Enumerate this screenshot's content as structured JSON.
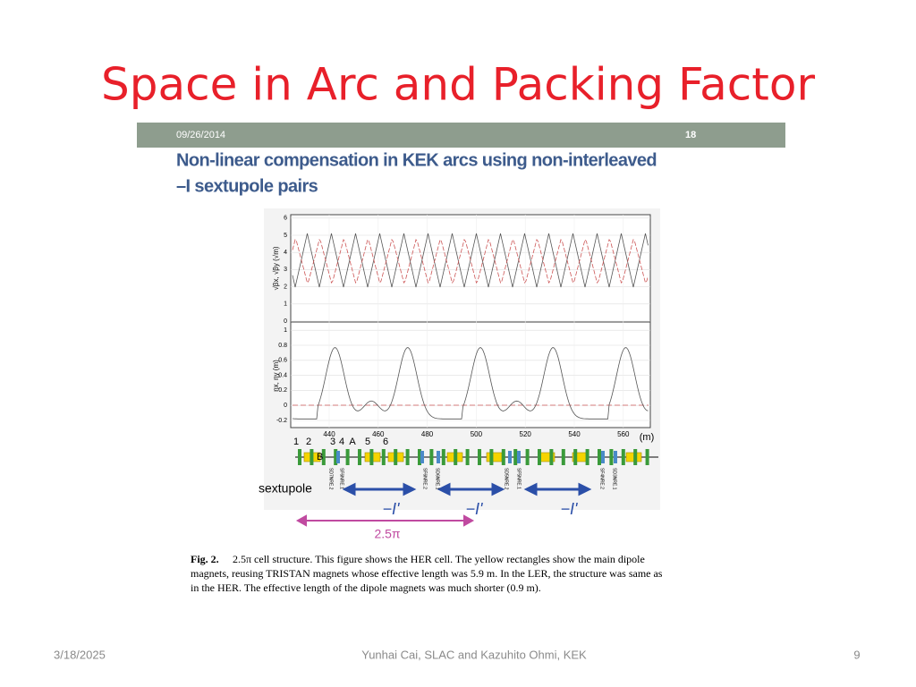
{
  "slide": {
    "title": "Space in Arc and Packing Factor"
  },
  "figure": {
    "header_date": "09/26/2014",
    "header_page": "18",
    "heading": [
      "Non-linear compensation in KEK arcs using non-interleaved",
      "–I sextupole pairs"
    ],
    "plot_top": {
      "ylabel": "√βx, √βy (√m)",
      "yticks": [
        "0",
        "1",
        "2",
        "3",
        "4",
        "5",
        "6"
      ]
    },
    "plot_bottom": {
      "ylabel": "ηx, ηy (m)",
      "yticks": [
        "-0.2",
        "0",
        "0.2",
        "0.4",
        "0.6",
        "0.8",
        "1"
      ],
      "xticks": [
        "440",
        "460",
        "480",
        "500",
        "520",
        "540",
        "560"
      ],
      "xunit": "(m)"
    },
    "element_labels": [
      "1",
      "2",
      "3",
      "4",
      "A",
      "5",
      "6"
    ],
    "dipole_label": "B",
    "sextupole_label": "sextupole",
    "sextupole_names": [
      "SD7NRE.2",
      "SF6NRE.1",
      "SF6NRE.2",
      "SD6NRE.1",
      "SD5NRE.2",
      "SF5NRE.1",
      "SF4NRE.2",
      "SD3NRE.1"
    ],
    "pair_labels": [
      "−I'",
      "−I'",
      "−I'"
    ],
    "phase_label": "2.5π",
    "caption": {
      "label": "Fig. 2.",
      "lines": [
        "2.5π  cell structure. This figure shows the HER cell. The yellow rectangles show the main dipole",
        "magnets, reusing TRISTAN magnets whose effective length was 5.9 m. In the LER, the structure was same as",
        "in the HER. The effective length of the dipole magnets was much shorter (0.9 m)."
      ]
    }
  },
  "footer": {
    "date": "3/18/2025",
    "author": "Yunhai Cai, SLAC  and Kazuhito Ohmi, KEK",
    "page": "9"
  }
}
